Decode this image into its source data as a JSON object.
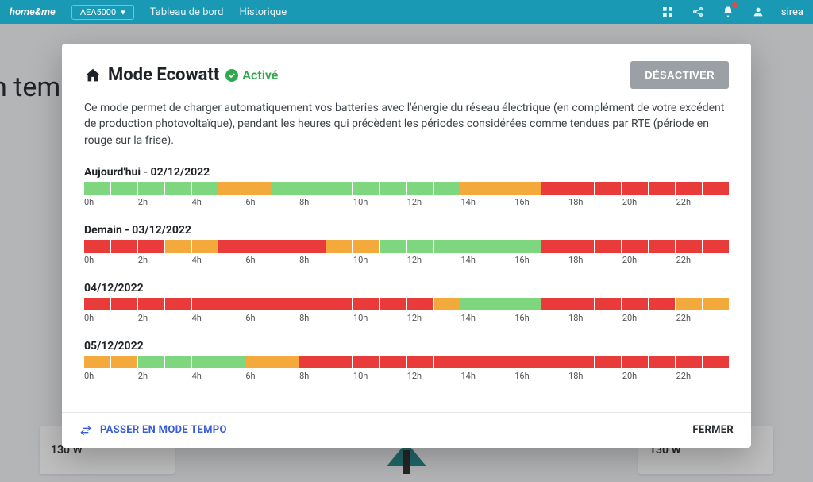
{
  "appbar": {
    "brand": "home&me",
    "selector_id": "AEA5000",
    "tab_dashboard": "Tableau de bord",
    "tab_history": "Historique",
    "user": "sirea"
  },
  "bg": {
    "title_fragment": "n temp",
    "card_value": "130 W"
  },
  "modal": {
    "title": "Mode Ecowatt",
    "status_label": "Activé",
    "deactivate_label": "DÉSACTIVER",
    "description": "Ce mode permet de charger automatiquement vos batteries avec l'énergie du réseau électrique (en complément de votre excédent de production photovoltaïque), pendant les heures qui précèdent les périodes considérées comme tendues par RTE (période en rouge sur la frise).",
    "tempo_label": "PASSER EN MODE TEMPO",
    "close_label": "FERMER",
    "colors": {
      "green": "#7ed67e",
      "orange": "#f4a93c",
      "red": "#ea3b3b"
    },
    "axis_ticks": [
      "0h",
      "",
      "2h",
      "",
      "4h",
      "",
      "6h",
      "",
      "8h",
      "",
      "10h",
      "",
      "12h",
      "",
      "14h",
      "",
      "16h",
      "",
      "18h",
      "",
      "20h",
      "",
      "22h",
      ""
    ],
    "days": [
      {
        "label": "Aujourd'hui - 02/12/2022",
        "segments": [
          "green",
          "green",
          "green",
          "green",
          "green",
          "orange",
          "orange",
          "green",
          "green",
          "green",
          "green",
          "green",
          "green",
          "green",
          "orange",
          "orange",
          "orange",
          "red",
          "red",
          "red",
          "red",
          "red",
          "red",
          "red"
        ]
      },
      {
        "label": "Demain - 03/12/2022",
        "segments": [
          "red",
          "red",
          "red",
          "orange",
          "orange",
          "red",
          "red",
          "red",
          "red",
          "orange",
          "orange",
          "green",
          "green",
          "green",
          "green",
          "green",
          "green",
          "red",
          "red",
          "red",
          "red",
          "red",
          "red",
          "red"
        ]
      },
      {
        "label": "04/12/2022",
        "segments": [
          "red",
          "red",
          "red",
          "red",
          "red",
          "red",
          "red",
          "red",
          "red",
          "red",
          "red",
          "red",
          "red",
          "orange",
          "green",
          "green",
          "green",
          "red",
          "red",
          "red",
          "red",
          "red",
          "orange",
          "orange"
        ]
      },
      {
        "label": "05/12/2022",
        "segments": [
          "orange",
          "orange",
          "green",
          "green",
          "green",
          "green",
          "orange",
          "orange",
          "red",
          "red",
          "red",
          "red",
          "red",
          "red",
          "red",
          "red",
          "red",
          "red",
          "red",
          "red",
          "red",
          "red",
          "red",
          "red"
        ]
      }
    ]
  }
}
